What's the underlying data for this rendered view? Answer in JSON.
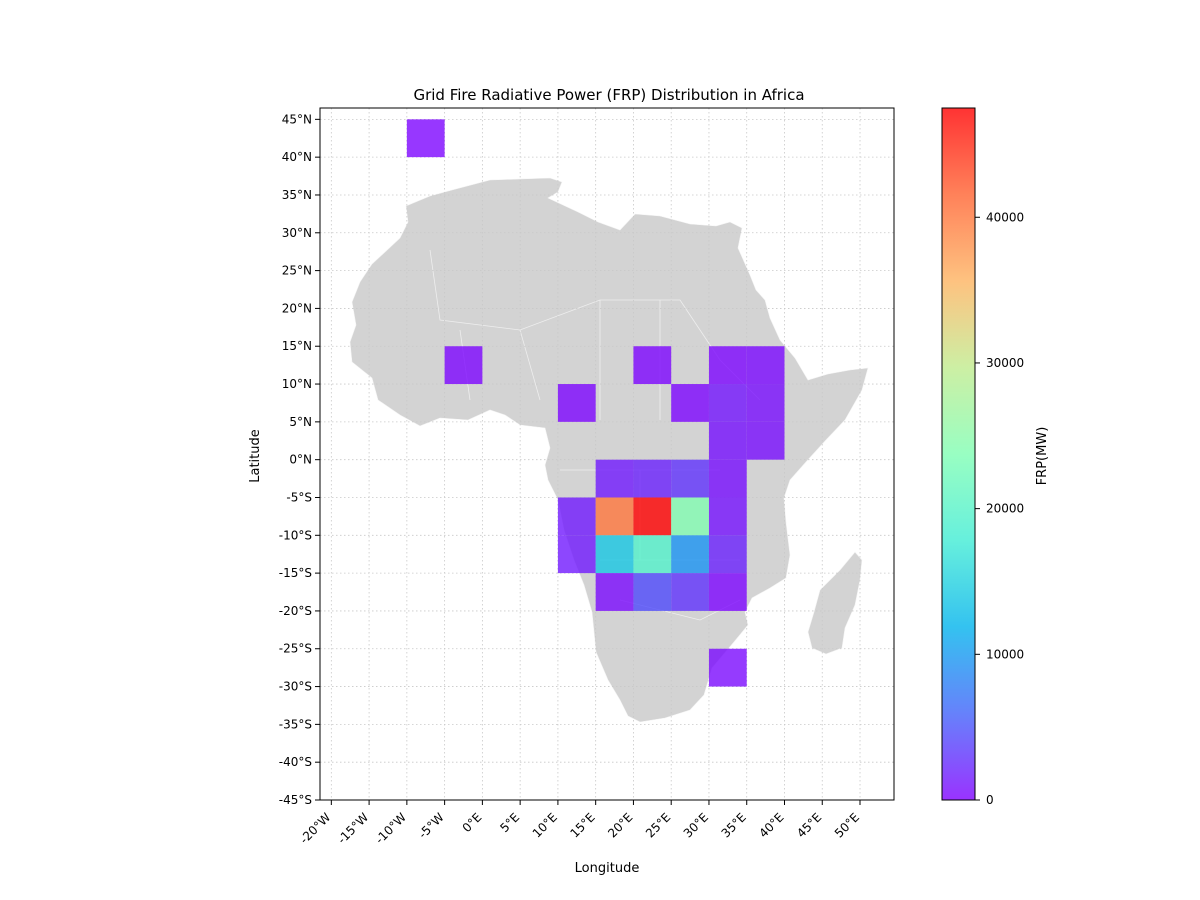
{
  "chart_data": {
    "type": "heatmap",
    "title": "Grid Fire Radiative Power (FRP) Distribution in Africa",
    "xlabel": "Longitude",
    "ylabel": "Latitude",
    "colorbar_label": "FRP(MW)",
    "colorbar_ticks": [
      0,
      10000,
      20000,
      30000,
      40000
    ],
    "colorbar_range": [
      0,
      47500
    ],
    "colormap": [
      "#8000ff",
      "#4062fa",
      "#01b3ec",
      "#40ecd4",
      "#7ffeb3",
      "#c0eb8d",
      "#feb360",
      "#ff6230",
      "#ff0000"
    ],
    "xlim": [
      -21.5,
      54.5
    ],
    "ylim": [
      -45,
      46.5
    ],
    "grid": true,
    "grid_cell_size_deg": 5,
    "xticks": [
      {
        "value": -20,
        "label": "-20$^\\circ$W"
      },
      {
        "value": -15,
        "label": "-15$^\\circ$W"
      },
      {
        "value": -10,
        "label": "-10$^\\circ$W"
      },
      {
        "value": -5,
        "label": "-5$^\\circ$W"
      },
      {
        "value": 0,
        "label": "0$^\\circ$E"
      },
      {
        "value": 5,
        "label": "5$^\\circ$E"
      },
      {
        "value": 10,
        "label": "10$^\\circ$E"
      },
      {
        "value": 15,
        "label": "15$^\\circ$E"
      },
      {
        "value": 20,
        "label": "20$^\\circ$E"
      },
      {
        "value": 25,
        "label": "25$^\\circ$E"
      },
      {
        "value": 30,
        "label": "30$^\\circ$E"
      },
      {
        "value": 35,
        "label": "35$^\\circ$E"
      },
      {
        "value": 40,
        "label": "40$^\\circ$E"
      },
      {
        "value": 45,
        "label": "45$^\\circ$E"
      },
      {
        "value": 50,
        "label": "50$^\\circ$E"
      }
    ],
    "yticks": [
      {
        "value": 45,
        "label": "45$^\\circ$N"
      },
      {
        "value": 40,
        "label": "40$^\\circ$N"
      },
      {
        "value": 35,
        "label": "35$^\\circ$N"
      },
      {
        "value": 30,
        "label": "30$^\\circ$N"
      },
      {
        "value": 25,
        "label": "25$^\\circ$N"
      },
      {
        "value": 20,
        "label": "20$^\\circ$N"
      },
      {
        "value": 15,
        "label": "15$^\\circ$N"
      },
      {
        "value": 10,
        "label": "10$^\\circ$N"
      },
      {
        "value": 5,
        "label": "5$^\\circ$N"
      },
      {
        "value": 0,
        "label": "0$^\\circ$N"
      },
      {
        "value": -5,
        "label": "-5$^\\circ$S"
      },
      {
        "value": -10,
        "label": "-10$^\\circ$S"
      },
      {
        "value": -15,
        "label": "-15$^\\circ$S"
      },
      {
        "value": -20,
        "label": "-20$^\\circ$S"
      },
      {
        "value": -25,
        "label": "-25$^\\circ$S"
      },
      {
        "value": -30,
        "label": "-30$^\\circ$S"
      },
      {
        "value": -35,
        "label": "-35$^\\circ$S"
      },
      {
        "value": -40,
        "label": "-40$^\\circ$S"
      },
      {
        "value": -45,
        "label": "-45$^\\circ$S"
      }
    ],
    "cells": [
      {
        "lon": -10,
        "lat": 40,
        "frp": 300
      },
      {
        "lon": -5,
        "lat": 10,
        "frp": 300
      },
      {
        "lon": 10,
        "lat": 5,
        "frp": 300
      },
      {
        "lon": 20,
        "lat": 10,
        "frp": 300
      },
      {
        "lon": 25,
        "lat": 5,
        "frp": 300
      },
      {
        "lon": 30,
        "lat": 10,
        "frp": 300
      },
      {
        "lon": 35,
        "lat": 10,
        "frp": 500
      },
      {
        "lon": 30,
        "lat": 5,
        "frp": 1200
      },
      {
        "lon": 35,
        "lat": 5,
        "frp": 700
      },
      {
        "lon": 30,
        "lat": 0,
        "frp": 900
      },
      {
        "lon": 35,
        "lat": 0,
        "frp": 700
      },
      {
        "lon": 15,
        "lat": -5,
        "frp": 1500
      },
      {
        "lon": 20,
        "lat": -5,
        "frp": 2000
      },
      {
        "lon": 25,
        "lat": -5,
        "frp": 3000
      },
      {
        "lon": 30,
        "lat": -5,
        "frp": 800
      },
      {
        "lon": 10,
        "lat": -10,
        "frp": 1500
      },
      {
        "lon": 15,
        "lat": -10,
        "frp": 40000
      },
      {
        "lon": 20,
        "lat": -10,
        "frp": 47500
      },
      {
        "lon": 25,
        "lat": -10,
        "frp": 24000
      },
      {
        "lon": 30,
        "lat": -10,
        "frp": 1000
      },
      {
        "lon": 10,
        "lat": -15,
        "frp": 1500
      },
      {
        "lon": 15,
        "lat": -15,
        "frp": 14000
      },
      {
        "lon": 20,
        "lat": -15,
        "frp": 19500
      },
      {
        "lon": 25,
        "lat": -15,
        "frp": 9500
      },
      {
        "lon": 30,
        "lat": -15,
        "frp": 2000
      },
      {
        "lon": 15,
        "lat": -20,
        "frp": 600
      },
      {
        "lon": 20,
        "lat": -20,
        "frp": 4500
      },
      {
        "lon": 25,
        "lat": -20,
        "frp": 3000
      },
      {
        "lon": 30,
        "lat": -20,
        "frp": 300
      },
      {
        "lon": 30,
        "lat": -30,
        "frp": 600
      }
    ]
  }
}
